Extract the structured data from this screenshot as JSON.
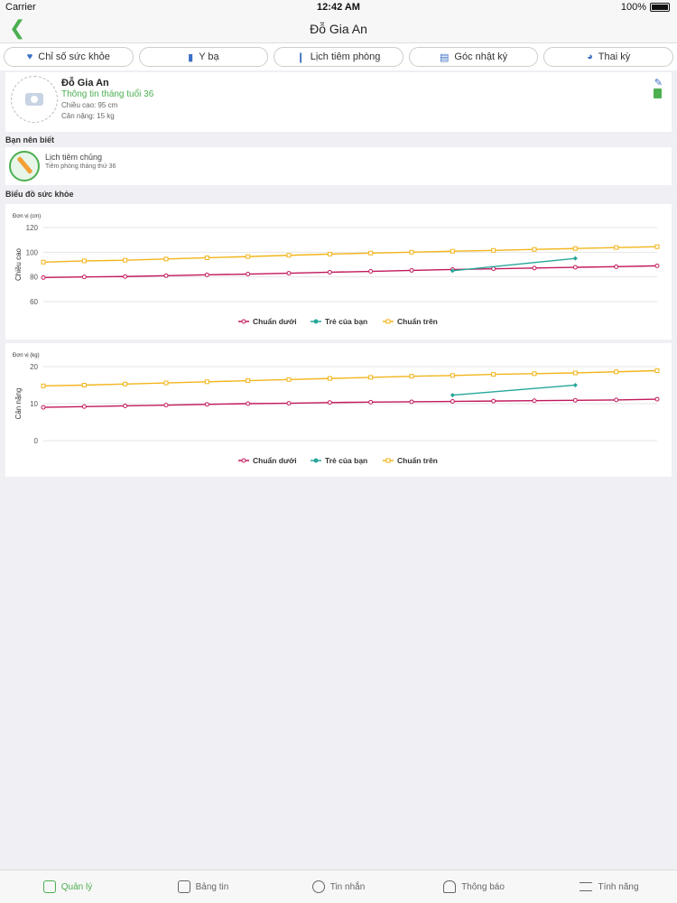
{
  "status": {
    "carrier": "Carrier",
    "time": "12:42 AM",
    "battery": "100%"
  },
  "nav": {
    "title": "Đỗ Gia An"
  },
  "tabs": [
    {
      "label": "Chỉ số sức khỏe",
      "icon": "heart-icon"
    },
    {
      "label": "Y bạ",
      "icon": "book-icon"
    },
    {
      "label": "Lịch tiêm phòng",
      "icon": "syringe-icon"
    },
    {
      "label": "Góc nhật ký",
      "icon": "diary-icon"
    },
    {
      "label": "Thai kỳ",
      "icon": "baby-icon"
    }
  ],
  "profile": {
    "name": "Đỗ Gia An",
    "subtitle": "Thông tin tháng tuổi 36",
    "height": "Chiều cao: 95 cm",
    "weight": "Cân nặng: 15 kg"
  },
  "know": {
    "section": "Bạn nên biết",
    "title": "Lịch tiêm chủng",
    "subtitle": "Tiêm phòng tháng thứ 36"
  },
  "charts_section": "Biểu đồ sức khỏe",
  "colors": {
    "lower": "#c2185b",
    "child": "#26a69a",
    "upper": "#f2b51c",
    "accent": "#4caf50"
  },
  "chart_data": [
    {
      "type": "line",
      "unit_label": "Đơn vị (cm)",
      "ylabel": "Chiều cao",
      "xlabel": "",
      "ylim": [
        60,
        120
      ],
      "yticks": [
        60,
        80,
        100,
        120
      ],
      "x": [
        1,
        2,
        3,
        4,
        5,
        6,
        7,
        8,
        9,
        10,
        11,
        12,
        13,
        14,
        15,
        16
      ],
      "series": [
        {
          "name": "Chuẩn dưới",
          "color": "#c2185b",
          "marker": "circle",
          "values": [
            79.5,
            80,
            80.3,
            81,
            81.7,
            82.3,
            83,
            83.8,
            84.5,
            85.3,
            86,
            86.6,
            87.2,
            87.8,
            88.3,
            89
          ]
        },
        {
          "name": "Trẻ của bạn",
          "color": "#26a69a",
          "marker": "diamond",
          "x": [
            11,
            14
          ],
          "values": [
            85,
            95
          ]
        },
        {
          "name": "Chuẩn trên",
          "color": "#f2b51c",
          "marker": "square",
          "values": [
            92,
            93,
            93.5,
            94.5,
            95.5,
            96.5,
            97.5,
            98.5,
            99.3,
            100,
            100.8,
            101.5,
            102.3,
            103,
            103.8,
            104.5
          ]
        }
      ],
      "grid": true,
      "legend": "bottom"
    },
    {
      "type": "line",
      "unit_label": "Đơn vị (kg)",
      "ylabel": "Cân nặng",
      "xlabel": "",
      "ylim": [
        0,
        20
      ],
      "yticks": [
        0,
        10,
        20
      ],
      "x": [
        1,
        2,
        3,
        4,
        5,
        6,
        7,
        8,
        9,
        10,
        11,
        12,
        13,
        14,
        15,
        16
      ],
      "series": [
        {
          "name": "Chuẩn dưới",
          "color": "#c2185b",
          "marker": "circle",
          "values": [
            9,
            9.2,
            9.4,
            9.6,
            9.8,
            10,
            10.1,
            10.3,
            10.4,
            10.5,
            10.6,
            10.7,
            10.8,
            10.9,
            11,
            11.2
          ]
        },
        {
          "name": "Trẻ của bạn",
          "color": "#26a69a",
          "marker": "diamond",
          "x": [
            11,
            14
          ],
          "values": [
            12.3,
            15
          ]
        },
        {
          "name": "Chuẩn trên",
          "color": "#f2b51c",
          "marker": "square",
          "values": [
            14.8,
            15,
            15.3,
            15.6,
            15.9,
            16.2,
            16.5,
            16.8,
            17.1,
            17.4,
            17.6,
            17.9,
            18.1,
            18.3,
            18.6,
            18.9
          ]
        }
      ],
      "grid": true,
      "legend": "bottom"
    }
  ],
  "tab_bar": [
    {
      "label": "Quản lý",
      "icon": "manage-icon",
      "active": true
    },
    {
      "label": "Bảng tin",
      "icon": "news-icon",
      "active": false
    },
    {
      "label": "Tin nhắn",
      "icon": "message-icon",
      "active": false
    },
    {
      "label": "Thông báo",
      "icon": "bell-icon",
      "active": false
    },
    {
      "label": "Tính năng",
      "icon": "menu-icon",
      "active": false
    }
  ]
}
